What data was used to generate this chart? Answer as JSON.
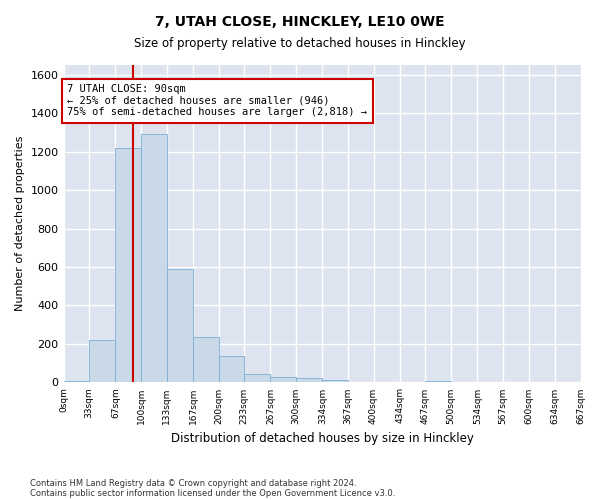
{
  "title": "7, UTAH CLOSE, HINCKLEY, LE10 0WE",
  "subtitle": "Size of property relative to detached houses in Hinckley",
  "xlabel": "Distribution of detached houses by size in Hinckley",
  "ylabel": "Number of detached properties",
  "bar_color": "#c9d9e8",
  "bar_edge_color": "#7bafd4",
  "background_color": "#dde4f0",
  "grid_color": "#ffffff",
  "vline_x": 90,
  "vline_color": "#cc0000",
  "annotation_text": "7 UTAH CLOSE: 90sqm\n← 25% of detached houses are smaller (946)\n75% of semi-detached houses are larger (2,818) →",
  "annotation_box_color": "#ffffff",
  "annotation_box_edge": "#cc0000",
  "bin_edges": [
    0,
    33,
    67,
    100,
    133,
    167,
    200,
    233,
    267,
    300,
    334,
    367,
    400,
    434,
    467,
    500,
    534,
    567,
    600,
    634,
    667
  ],
  "bar_heights": [
    10,
    220,
    1220,
    1290,
    590,
    235,
    135,
    45,
    30,
    25,
    15,
    0,
    0,
    0,
    10,
    0,
    0,
    0,
    0,
    0
  ],
  "ylim": [
    0,
    1650
  ],
  "yticks": [
    0,
    200,
    400,
    600,
    800,
    1000,
    1200,
    1400,
    1600
  ],
  "footer1": "Contains HM Land Registry data © Crown copyright and database right 2024.",
  "footer2": "Contains public sector information licensed under the Open Government Licence v3.0."
}
